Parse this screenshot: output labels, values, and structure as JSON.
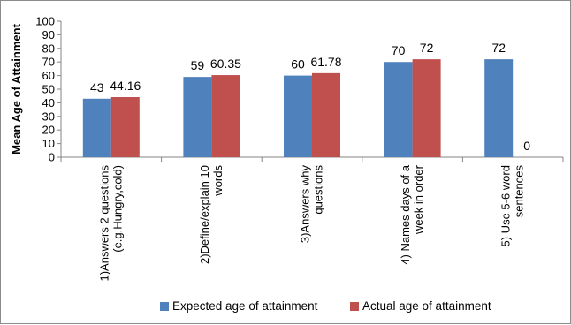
{
  "chart_data": {
    "type": "bar",
    "title": "",
    "xlabel": "",
    "ylabel": "Mean Age of Attainment",
    "ylim": [
      0,
      100
    ],
    "yticks": [
      0,
      10,
      20,
      30,
      40,
      50,
      60,
      70,
      80,
      90,
      100
    ],
    "categories": [
      [
        "1)Answers 2 questions",
        "(e.g.Hungry,cold)"
      ],
      [
        "2)Define/explain 10",
        "words"
      ],
      [
        "3)Answers why",
        "questions"
      ],
      [
        "4) Names days of a",
        "week in order"
      ],
      [
        "5) Use 5-6 word",
        "sentences"
      ]
    ],
    "series": [
      {
        "name": "Expected age of attainment",
        "values": [
          43,
          59,
          60,
          70,
          72
        ],
        "labels": [
          "43",
          "59",
          "60",
          "70",
          "72"
        ],
        "color": "#4f81bd"
      },
      {
        "name": "Actual age of attainment",
        "values": [
          44.16,
          60.35,
          61.78,
          72,
          0
        ],
        "labels": [
          "44.16",
          "60.35",
          "61.78",
          "72",
          "0"
        ],
        "color": "#c0504d"
      }
    ],
    "grid": false,
    "legend_position": "bottom"
  }
}
